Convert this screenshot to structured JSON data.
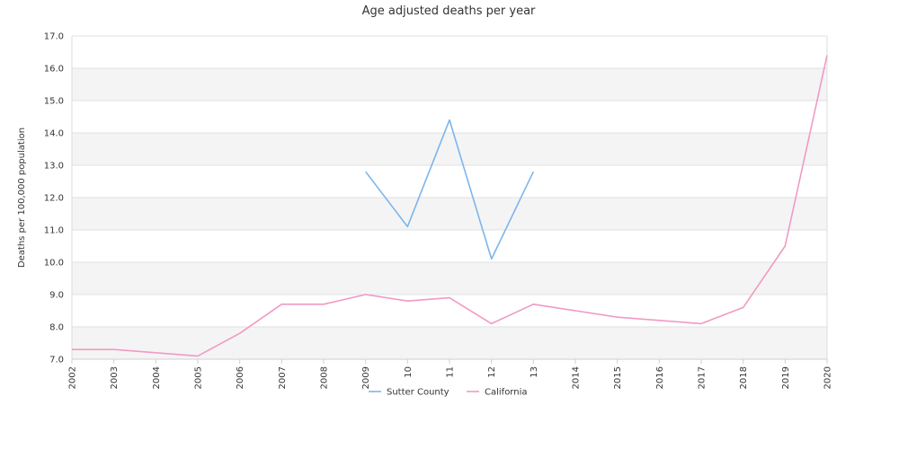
{
  "chart_data": {
    "type": "line",
    "title": "Age adjusted deaths per year",
    "xlabel": "",
    "ylabel": "Deaths per 100,000 population",
    "ylim": [
      7.0,
      17.0
    ],
    "y_ticks": [
      "7.0",
      "8.0",
      "9.0",
      "10.0",
      "11.0",
      "12.0",
      "13.0",
      "14.0",
      "15.0",
      "16.0",
      "17.0"
    ],
    "x_tick_labels": [
      "2002",
      "2003",
      "2004",
      "2005",
      "2006",
      "2007",
      "2008",
      "2009",
      "10",
      "11",
      "12",
      "13",
      "2014",
      "2015",
      "2016",
      "2017",
      "2018",
      "2019",
      "2020"
    ],
    "x": [
      2002,
      2003,
      2004,
      2005,
      2006,
      2007,
      2008,
      2009,
      2010,
      2011,
      2012,
      2013,
      2014,
      2015,
      2016,
      2017,
      2018,
      2019,
      2020
    ],
    "grid": true,
    "legend_position": "bottom",
    "series": [
      {
        "name": "Sutter County",
        "color": "#7cb5ec",
        "values": [
          null,
          null,
          null,
          null,
          null,
          null,
          null,
          12.8,
          11.1,
          14.4,
          10.1,
          12.8,
          null,
          null,
          null,
          null,
          null,
          null,
          null
        ]
      },
      {
        "name": "California",
        "color": "#f09ac4",
        "values": [
          7.3,
          7.3,
          7.2,
          7.1,
          7.8,
          8.7,
          8.7,
          9.0,
          8.8,
          8.9,
          8.1,
          8.7,
          8.5,
          8.3,
          8.2,
          8.1,
          8.6,
          10.5,
          16.4
        ]
      }
    ]
  }
}
